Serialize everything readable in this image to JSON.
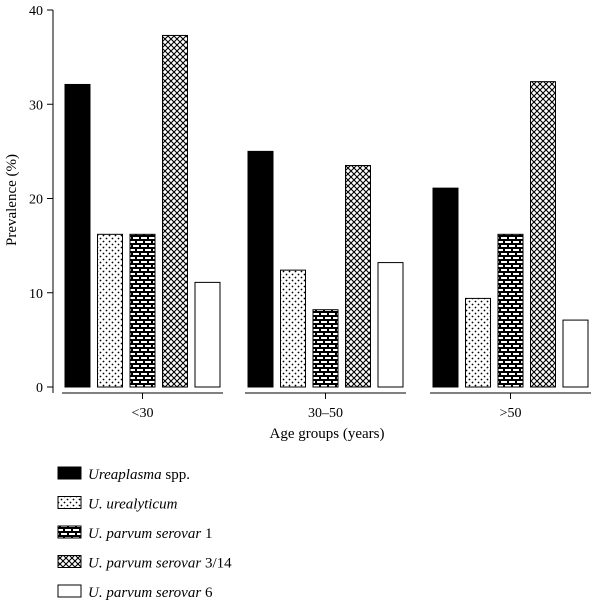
{
  "chart_data": {
    "type": "bar",
    "xlabel": "Age groups (years)",
    "ylabel": "Prevalence (%)",
    "ylim": [
      0,
      40
    ],
    "yticks": [
      "0",
      "10",
      "20",
      "30",
      "40"
    ],
    "categories": [
      "<30",
      "30–50",
      ">50"
    ],
    "legend_position": "bottom",
    "series": [
      {
        "name_parts": [
          {
            "text": "Ureaplasma",
            "italic": true
          },
          {
            "text": " spp.",
            "italic": false
          }
        ],
        "name": "Ureaplasma spp.",
        "pattern": "solid",
        "values": [
          32.1,
          25.0,
          21.1
        ]
      },
      {
        "name_parts": [
          {
            "text": "U. urealyticum",
            "italic": true
          }
        ],
        "name": "U. urealyticum",
        "pattern": "dots",
        "values": [
          16.2,
          12.4,
          9.4
        ]
      },
      {
        "name_parts": [
          {
            "text": "U. parvum serovar",
            "italic": true
          },
          {
            "text": " 1",
            "italic": false
          }
        ],
        "name": "U. parvum serovar 1",
        "pattern": "bricks",
        "values": [
          16.2,
          8.2,
          16.2
        ]
      },
      {
        "name_parts": [
          {
            "text": "U. parvum serovar",
            "italic": true
          },
          {
            "text": " 3/14",
            "italic": false
          }
        ],
        "name": "U. parvum serovar 3/14",
        "pattern": "crosshatch",
        "values": [
          37.3,
          23.5,
          32.4
        ]
      },
      {
        "name_parts": [
          {
            "text": "U. parvum serovar",
            "italic": true
          },
          {
            "text": " 6",
            "italic": false
          }
        ],
        "name": "U. parvum serovar 6",
        "pattern": "white",
        "values": [
          11.1,
          13.2,
          7.1
        ]
      }
    ]
  }
}
